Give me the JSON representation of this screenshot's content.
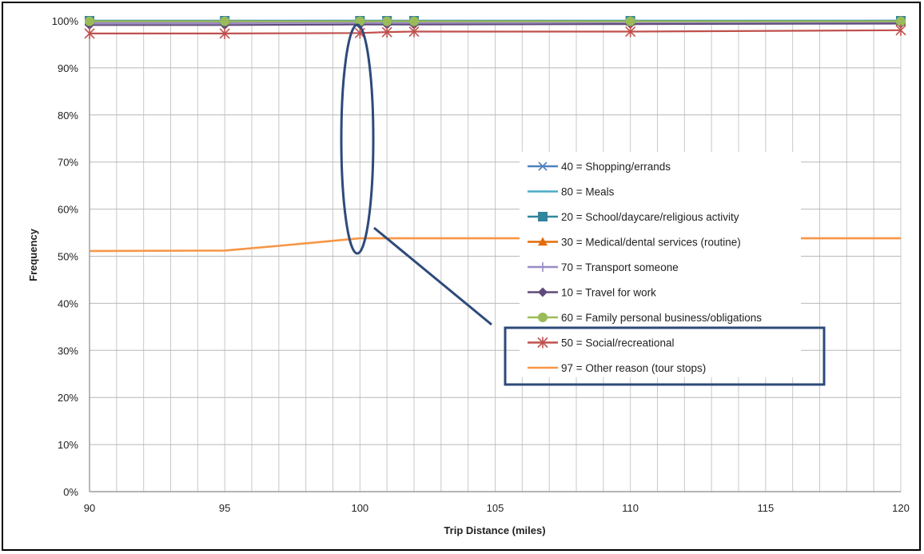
{
  "chart_data": {
    "type": "line",
    "title": "",
    "xlabel": "Trip Distance (miles)",
    "ylabel": "Frequency",
    "xlim": [
      90,
      120
    ],
    "ylim": [
      0,
      1
    ],
    "x_ticks": [
      "90",
      "95",
      "100",
      "105",
      "110",
      "115",
      "120"
    ],
    "y_ticks": [
      "0%",
      "10%",
      "20%",
      "30%",
      "40%",
      "50%",
      "60%",
      "70%",
      "80%",
      "90%",
      "100%"
    ],
    "grid": true,
    "legend_position": "right",
    "series": [
      {
        "name": "40 = Shopping/errands",
        "color": "#4f81bd",
        "marker": "x",
        "points": [
          [
            90,
            0.998
          ],
          [
            95,
            0.998
          ],
          [
            100,
            0.999
          ],
          [
            101,
            0.999
          ],
          [
            102,
            0.999
          ],
          [
            110,
            0.999
          ],
          [
            120,
            1.0
          ]
        ]
      },
      {
        "name": "80 = Meals",
        "color": "#4bacc6",
        "marker": "none",
        "points": [
          [
            90,
            1.0
          ],
          [
            95,
            1.0
          ],
          [
            100,
            1.0
          ],
          [
            101,
            1.0
          ],
          [
            102,
            1.0
          ],
          [
            110,
            1.0
          ],
          [
            120,
            1.0
          ]
        ]
      },
      {
        "name": "20 = School/daycare/religious activity",
        "color": "#31859c",
        "marker": "square",
        "points": [
          [
            90,
            1.0
          ],
          [
            95,
            1.0
          ],
          [
            100,
            1.0
          ],
          [
            101,
            1.0
          ],
          [
            102,
            1.0
          ],
          [
            110,
            1.0
          ],
          [
            120,
            1.0
          ]
        ]
      },
      {
        "name": "30 = Medical/dental services (routine)",
        "color": "#e46c0a",
        "marker": "triangle",
        "points": [
          [
            90,
            0.999
          ],
          [
            95,
            0.999
          ],
          [
            100,
            0.999
          ],
          [
            101,
            0.999
          ],
          [
            102,
            0.999
          ],
          [
            110,
            0.999
          ],
          [
            120,
            0.999
          ]
        ]
      },
      {
        "name": "70 = Transport someone",
        "color": "#9b8bc4",
        "marker": "plus",
        "points": [
          [
            90,
            0.995
          ],
          [
            95,
            0.995
          ],
          [
            100,
            0.996
          ],
          [
            101,
            0.996
          ],
          [
            102,
            0.996
          ],
          [
            110,
            0.997
          ],
          [
            120,
            0.997
          ]
        ]
      },
      {
        "name": "10 = Travel for work",
        "color": "#604a7b",
        "marker": "diamond",
        "points": [
          [
            90,
            0.991
          ],
          [
            95,
            0.991
          ],
          [
            100,
            0.992
          ],
          [
            101,
            0.992
          ],
          [
            102,
            0.992
          ],
          [
            110,
            0.993
          ],
          [
            120,
            0.994
          ]
        ]
      },
      {
        "name": "60 = Family personal business/obligations",
        "color": "#9bbb59",
        "marker": "circle",
        "points": [
          [
            90,
            0.999
          ],
          [
            95,
            0.999
          ],
          [
            100,
            0.999
          ],
          [
            101,
            0.999
          ],
          [
            102,
            0.999
          ],
          [
            110,
            0.999
          ],
          [
            120,
            0.999
          ]
        ]
      },
      {
        "name": "50 = Social/recreational",
        "color": "#c0504d",
        "marker": "star",
        "points": [
          [
            90,
            0.973
          ],
          [
            95,
            0.973
          ],
          [
            100,
            0.974
          ],
          [
            101,
            0.976
          ],
          [
            102,
            0.977
          ],
          [
            110,
            0.977
          ],
          [
            120,
            0.98
          ]
        ]
      },
      {
        "name": "97 = Other reason (tour stops)",
        "color": "#f79646",
        "marker": "none",
        "points": [
          [
            90,
            0.511
          ],
          [
            95,
            0.512
          ],
          [
            97,
            0.522
          ],
          [
            100,
            0.538
          ],
          [
            101,
            0.538
          ],
          [
            102,
            0.538
          ],
          [
            110,
            0.538
          ],
          [
            120,
            0.538
          ]
        ]
      }
    ],
    "annotation_color": "#2e4a7a"
  }
}
